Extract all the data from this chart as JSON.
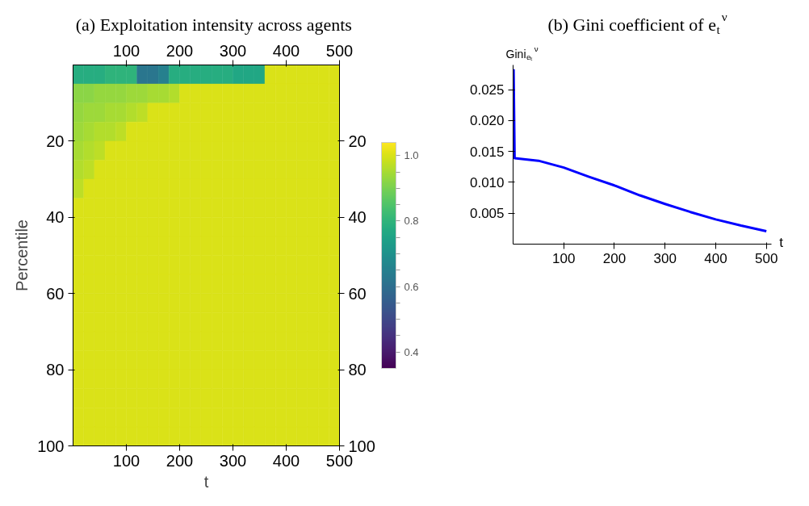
{
  "chart_data": [
    {
      "type": "heatmap",
      "title": "(a) Exploitation intensity across agents",
      "xlabel": "t",
      "ylabel": "Percentile",
      "x": [
        10,
        30,
        50,
        70,
        90,
        110,
        130,
        150,
        170,
        190,
        210,
        230,
        250,
        270,
        290,
        310,
        330,
        350,
        370,
        390,
        410,
        430,
        450,
        470,
        490
      ],
      "y": [
        2.5,
        7.5,
        12.5,
        17.5,
        22.5,
        27.5,
        32.5,
        37.5,
        42.5,
        47.5,
        52.5,
        57.5,
        62.5,
        67.5,
        72.5,
        77.5,
        82.5,
        87.5,
        92.5,
        97.5
      ],
      "cells": [
        [
          0.78,
          0.78,
          0.78,
          0.8,
          0.8,
          0.8,
          0.62,
          0.62,
          0.65,
          0.78,
          0.78,
          0.78,
          0.78,
          0.78,
          0.78,
          0.76,
          0.76,
          0.76,
          1.0,
          1.0,
          1.0,
          1.0,
          1.0,
          1.0,
          1.0
        ],
        [
          0.92,
          0.92,
          0.93,
          0.93,
          0.93,
          0.94,
          0.94,
          0.95,
          0.95,
          0.96,
          1.0,
          1.0,
          1.0,
          1.0,
          1.0,
          1.0,
          1.0,
          1.0,
          1.0,
          1.0,
          1.0,
          1.0,
          1.0,
          1.0,
          1.0
        ],
        [
          0.93,
          0.94,
          0.94,
          0.95,
          0.95,
          0.96,
          0.97,
          1.0,
          1.0,
          1.0,
          1.0,
          1.0,
          1.0,
          1.0,
          1.0,
          1.0,
          1.0,
          1.0,
          1.0,
          1.0,
          1.0,
          1.0,
          1.0,
          1.0,
          1.0
        ],
        [
          0.94,
          0.95,
          0.96,
          0.96,
          0.97,
          1.0,
          1.0,
          1.0,
          1.0,
          1.0,
          1.0,
          1.0,
          1.0,
          1.0,
          1.0,
          1.0,
          1.0,
          1.0,
          1.0,
          1.0,
          1.0,
          1.0,
          1.0,
          1.0,
          1.0
        ],
        [
          0.95,
          0.96,
          0.97,
          1.0,
          1.0,
          1.0,
          1.0,
          1.0,
          1.0,
          1.0,
          1.0,
          1.0,
          1.0,
          1.0,
          1.0,
          1.0,
          1.0,
          1.0,
          1.0,
          1.0,
          1.0,
          1.0,
          1.0,
          1.0,
          1.0
        ],
        [
          0.96,
          0.97,
          1.0,
          1.0,
          1.0,
          1.0,
          1.0,
          1.0,
          1.0,
          1.0,
          1.0,
          1.0,
          1.0,
          1.0,
          1.0,
          1.0,
          1.0,
          1.0,
          1.0,
          1.0,
          1.0,
          1.0,
          1.0,
          1.0,
          1.0
        ],
        [
          0.97,
          1.0,
          1.0,
          1.0,
          1.0,
          1.0,
          1.0,
          1.0,
          1.0,
          1.0,
          1.0,
          1.0,
          1.0,
          1.0,
          1.0,
          1.0,
          1.0,
          1.0,
          1.0,
          1.0,
          1.0,
          1.0,
          1.0,
          1.0,
          1.0
        ],
        [
          1.0,
          1.0,
          1.0,
          1.0,
          1.0,
          1.0,
          1.0,
          1.0,
          1.0,
          1.0,
          1.0,
          1.0,
          1.0,
          1.0,
          1.0,
          1.0,
          1.0,
          1.0,
          1.0,
          1.0,
          1.0,
          1.0,
          1.0,
          1.0,
          1.0
        ],
        [
          1.0,
          1.0,
          1.0,
          1.0,
          1.0,
          1.0,
          1.0,
          1.0,
          1.0,
          1.0,
          1.0,
          1.0,
          1.0,
          1.0,
          1.0,
          1.0,
          1.0,
          1.0,
          1.0,
          1.0,
          1.0,
          1.0,
          1.0,
          1.0,
          1.0
        ],
        [
          1.0,
          1.0,
          1.0,
          1.0,
          1.0,
          1.0,
          1.0,
          1.0,
          1.0,
          1.0,
          1.0,
          1.0,
          1.0,
          1.0,
          1.0,
          1.0,
          1.0,
          1.0,
          1.0,
          1.0,
          1.0,
          1.0,
          1.0,
          1.0,
          1.0
        ],
        [
          1.0,
          1.0,
          1.0,
          1.0,
          1.0,
          1.0,
          1.0,
          1.0,
          1.0,
          1.0,
          1.0,
          1.0,
          1.0,
          1.0,
          1.0,
          1.0,
          1.0,
          1.0,
          1.0,
          1.0,
          1.0,
          1.0,
          1.0,
          1.0,
          1.0
        ],
        [
          1.0,
          1.0,
          1.0,
          1.0,
          1.0,
          1.0,
          1.0,
          1.0,
          1.0,
          1.0,
          1.0,
          1.0,
          1.0,
          1.0,
          1.0,
          1.0,
          1.0,
          1.0,
          1.0,
          1.0,
          1.0,
          1.0,
          1.0,
          1.0,
          1.0
        ],
        [
          1.0,
          1.0,
          1.0,
          1.0,
          1.0,
          1.0,
          1.0,
          1.0,
          1.0,
          1.0,
          1.0,
          1.0,
          1.0,
          1.0,
          1.0,
          1.0,
          1.0,
          1.0,
          1.0,
          1.0,
          1.0,
          1.0,
          1.0,
          1.0,
          1.0
        ],
        [
          1.0,
          1.0,
          1.0,
          1.0,
          1.0,
          1.0,
          1.0,
          1.0,
          1.0,
          1.0,
          1.0,
          1.0,
          1.0,
          1.0,
          1.0,
          1.0,
          1.0,
          1.0,
          1.0,
          1.0,
          1.0,
          1.0,
          1.0,
          1.0,
          1.0
        ],
        [
          1.0,
          1.0,
          1.0,
          1.0,
          1.0,
          1.0,
          1.0,
          1.0,
          1.0,
          1.0,
          1.0,
          1.0,
          1.0,
          1.0,
          1.0,
          1.0,
          1.0,
          1.0,
          1.0,
          1.0,
          1.0,
          1.0,
          1.0,
          1.0,
          1.0
        ],
        [
          1.0,
          1.0,
          1.0,
          1.0,
          1.0,
          1.0,
          1.0,
          1.0,
          1.0,
          1.0,
          1.0,
          1.0,
          1.0,
          1.0,
          1.0,
          1.0,
          1.0,
          1.0,
          1.0,
          1.0,
          1.0,
          1.0,
          1.0,
          1.0,
          1.0
        ],
        [
          1.0,
          1.0,
          1.0,
          1.0,
          1.0,
          1.0,
          1.0,
          1.0,
          1.0,
          1.0,
          1.0,
          1.0,
          1.0,
          1.0,
          1.0,
          1.0,
          1.0,
          1.0,
          1.0,
          1.0,
          1.0,
          1.0,
          1.0,
          1.0,
          1.0
        ],
        [
          1.0,
          1.0,
          1.0,
          1.0,
          1.0,
          1.0,
          1.0,
          1.0,
          1.0,
          1.0,
          1.0,
          1.0,
          1.0,
          1.0,
          1.0,
          1.0,
          1.0,
          1.0,
          1.0,
          1.0,
          1.0,
          1.0,
          1.0,
          1.0,
          1.0
        ],
        [
          1.0,
          1.0,
          1.0,
          1.0,
          1.0,
          1.0,
          1.0,
          1.0,
          1.0,
          1.0,
          1.0,
          1.0,
          1.0,
          1.0,
          1.0,
          1.0,
          1.0,
          1.0,
          1.0,
          1.0,
          1.0,
          1.0,
          1.0,
          1.0,
          1.0
        ],
        [
          1.0,
          1.0,
          1.0,
          1.0,
          1.0,
          1.0,
          1.0,
          1.0,
          1.0,
          1.0,
          1.0,
          1.0,
          1.0,
          1.0,
          1.0,
          1.0,
          1.0,
          1.0,
          1.0,
          1.0,
          1.0,
          1.0,
          1.0,
          1.0,
          1.0
        ]
      ],
      "xlim": [
        0,
        500
      ],
      "xticks": [
        100,
        200,
        300,
        400,
        500
      ],
      "x2lim": [
        0,
        500
      ],
      "x2ticks": [
        100,
        200,
        300,
        400,
        500
      ],
      "ylim": [
        100,
        0
      ],
      "yticks": [
        20,
        40,
        60,
        80,
        100
      ],
      "y2lim": [
        100,
        0
      ],
      "y2ticks": [
        20,
        40,
        60,
        80,
        100
      ],
      "clim": [
        0.35,
        1.04
      ],
      "cticks": [
        {
          "value": 0.4,
          "label": "0.4"
        },
        {
          "value": 0.45,
          "label": null
        },
        {
          "value": 0.5,
          "label": null
        },
        {
          "value": 0.55,
          "label": null
        },
        {
          "value": 0.6,
          "label": "0.6"
        },
        {
          "value": 0.65,
          "label": null
        },
        {
          "value": 0.7,
          "label": null
        },
        {
          "value": 0.75,
          "label": null
        },
        {
          "value": 0.8,
          "label": "0.8"
        },
        {
          "value": 0.85,
          "label": null
        },
        {
          "value": 0.9,
          "label": null
        },
        {
          "value": 0.95,
          "label": null
        },
        {
          "value": 1.0,
          "label": "1.0"
        }
      ],
      "grid": false
    },
    {
      "type": "line",
      "title": "(b) Gini coefficient of e$_{t}$$^{ν}$",
      "xlabel": "t",
      "ylabel": "Gini$_{eₜ}$$^{ν}$",
      "x": [
        1,
        3,
        50,
        100,
        150,
        200,
        250,
        300,
        350,
        400,
        450,
        500
      ],
      "series": [
        {
          "color": "#0000ff",
          "values": [
            0.0283,
            0.0139,
            0.0135,
            0.0124,
            0.0109,
            0.0095,
            0.0079,
            0.0065,
            0.0052,
            0.004,
            0.003,
            0.0021
          ]
        }
      ],
      "xlim": [
        0,
        510
      ],
      "xticks": [
        100,
        200,
        300,
        400,
        500
      ],
      "ylim": [
        0,
        0.029
      ],
      "yticks": [
        {
          "value": 0.005,
          "label": "0.005"
        },
        {
          "value": 0.01,
          "label": "0.010"
        },
        {
          "value": 0.015,
          "label": "0.015"
        },
        {
          "value": 0.02,
          "label": "0.020"
        },
        {
          "value": 0.025,
          "label": "0.025"
        }
      ],
      "marker": "none",
      "line_style": "solid",
      "grid": false
    }
  ]
}
